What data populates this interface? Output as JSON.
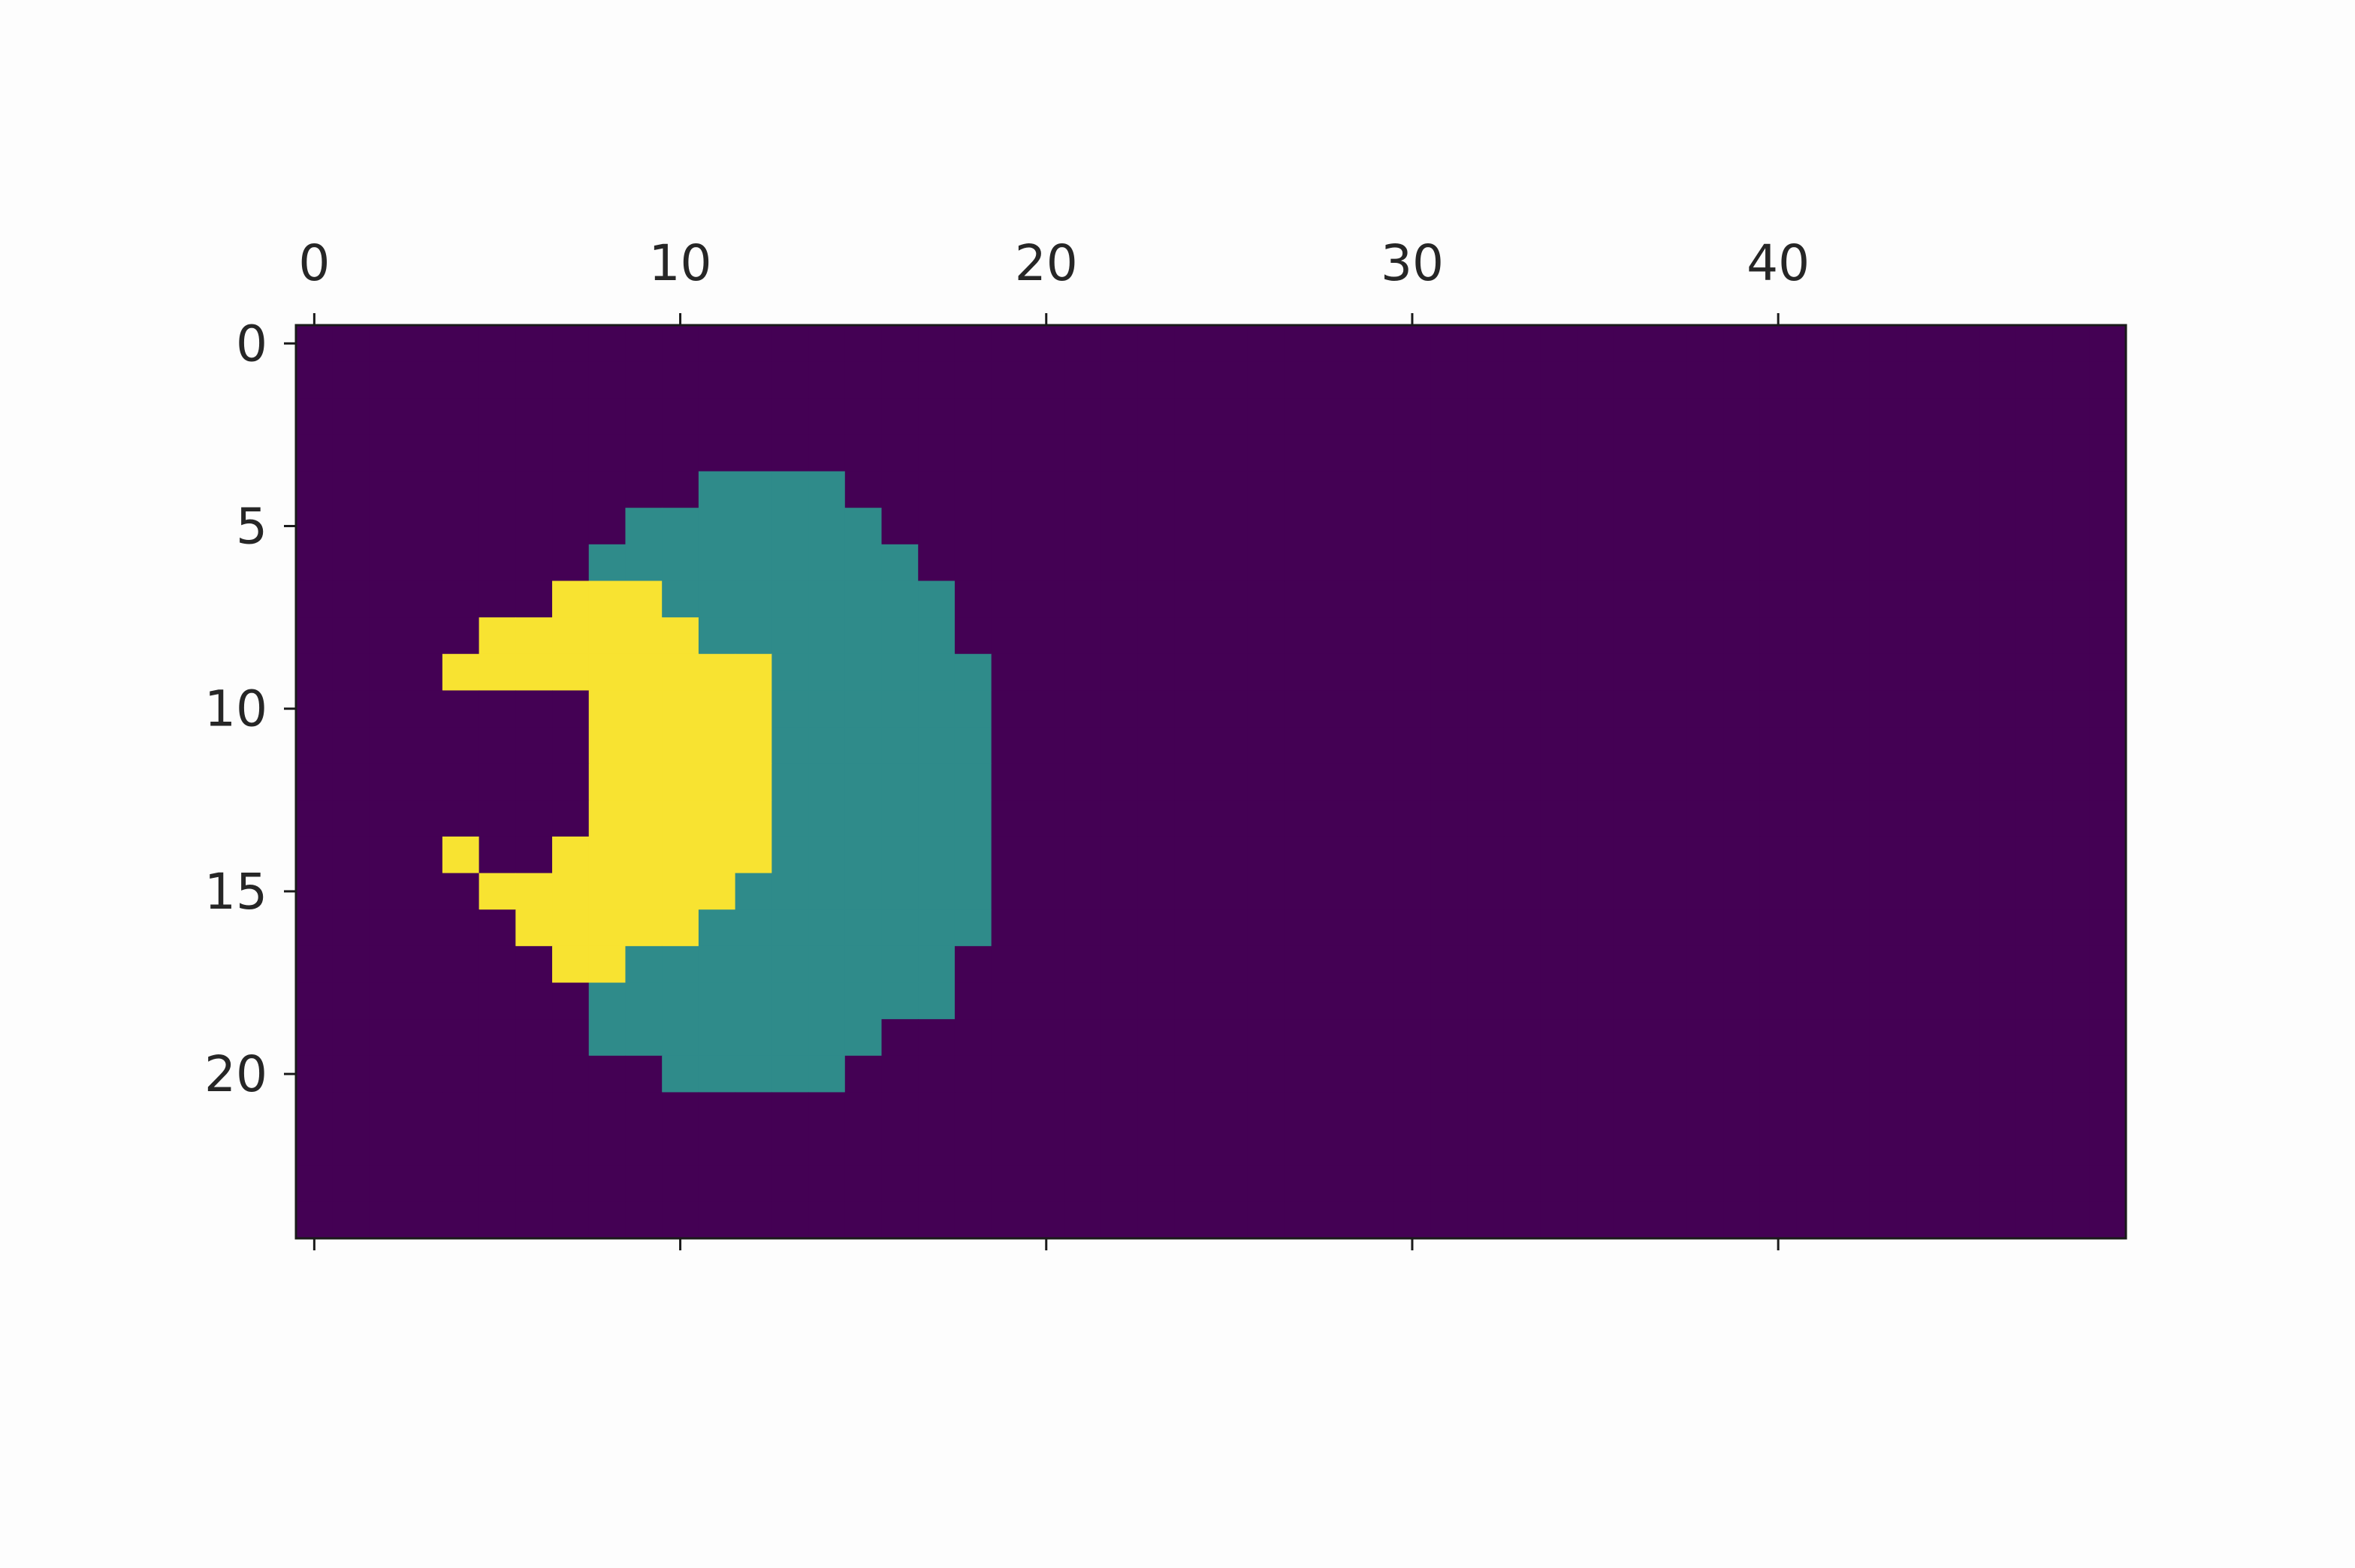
{
  "chart_data": {
    "type": "heatmap",
    "title": "",
    "xlabel": "",
    "ylabel": "",
    "shape": [
      25,
      50
    ],
    "xlim": [
      -0.5,
      49.5
    ],
    "ylim": [
      24.5,
      -0.5
    ],
    "x_ticks": [
      0,
      10,
      20,
      30,
      40
    ],
    "y_ticks": [
      0,
      5,
      10,
      15,
      20
    ],
    "x_tick_labels": [
      "0",
      "10",
      "20",
      "30",
      "40"
    ],
    "y_tick_labels": [
      "0",
      "5",
      "10",
      "15",
      "20"
    ],
    "x_axis_position": "top",
    "colormap": "viridis",
    "colors": {
      "0": "#440154",
      "1": "#2f8b8a",
      "2": "#f8e331"
    },
    "background_value": 0,
    "regions": [
      {
        "value": 1,
        "rows": [
          [
            4,
            11,
            14
          ],
          [
            5,
            9,
            15
          ],
          [
            6,
            8,
            16
          ],
          [
            7,
            8,
            17
          ],
          [
            8,
            8,
            17
          ],
          [
            9,
            8,
            18
          ],
          [
            10,
            8,
            18
          ],
          [
            11,
            8,
            18
          ],
          [
            12,
            8,
            18
          ],
          [
            13,
            8,
            18
          ],
          [
            14,
            8,
            18
          ],
          [
            15,
            8,
            18
          ],
          [
            16,
            8,
            18
          ],
          [
            17,
            8,
            17
          ],
          [
            18,
            8,
            17
          ],
          [
            19,
            8,
            15
          ],
          [
            20,
            10,
            14
          ]
        ]
      },
      {
        "value": 2,
        "rows": [
          [
            7,
            7,
            9
          ],
          [
            8,
            5,
            10
          ],
          [
            9,
            4,
            11
          ],
          [
            9,
            7,
            12
          ],
          [
            10,
            8,
            12
          ],
          [
            11,
            8,
            12
          ],
          [
            12,
            8,
            12
          ],
          [
            13,
            8,
            12
          ],
          [
            14,
            4,
            4
          ],
          [
            14,
            7,
            12
          ],
          [
            15,
            5,
            11
          ],
          [
            16,
            6,
            10
          ],
          [
            17,
            7,
            8
          ]
        ]
      }
    ]
  }
}
